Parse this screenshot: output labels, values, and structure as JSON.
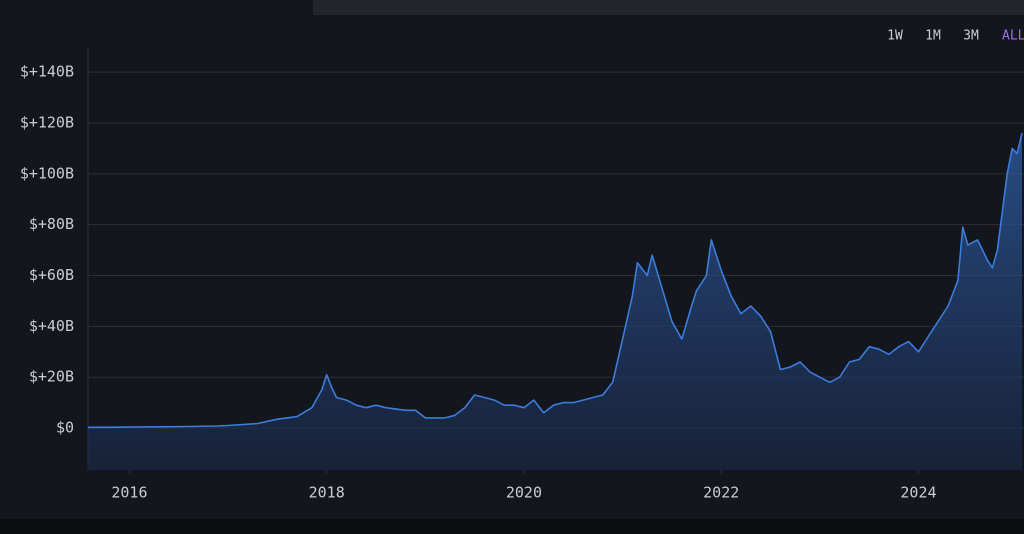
{
  "range_buttons": [
    "1W",
    "1M",
    "3M",
    "ALL"
  ],
  "chart_data": {
    "type": "area",
    "series": [
      {
        "color": "#3b7ddd",
        "x": [
          2015.58,
          2015.8,
          2016.0,
          2016.3,
          2016.6,
          2016.9,
          2017.0,
          2017.3,
          2017.5,
          2017.7,
          2017.85,
          2017.95,
          2018.0,
          2018.05,
          2018.1,
          2018.2,
          2018.3,
          2018.4,
          2018.5,
          2018.6,
          2018.8,
          2018.9,
          2019.0,
          2019.2,
          2019.3,
          2019.4,
          2019.5,
          2019.6,
          2019.7,
          2019.8,
          2019.9,
          2020.0,
          2020.1,
          2020.2,
          2020.3,
          2020.4,
          2020.5,
          2020.6,
          2020.7,
          2020.8,
          2020.9,
          2021.0,
          2021.1,
          2021.15,
          2021.25,
          2021.3,
          2021.4,
          2021.5,
          2021.6,
          2021.7,
          2021.75,
          2021.85,
          2021.9,
          2022.0,
          2022.1,
          2022.2,
          2022.3,
          2022.4,
          2022.5,
          2022.6,
          2022.7,
          2022.8,
          2022.9,
          2023.0,
          2023.1,
          2023.2,
          2023.3,
          2023.4,
          2023.5,
          2023.6,
          2023.7,
          2023.8,
          2023.9,
          2024.0,
          2024.1,
          2024.2,
          2024.3,
          2024.4,
          2024.45,
          2024.5,
          2024.6,
          2024.7,
          2024.75,
          2024.8,
          2024.85,
          2024.9,
          2024.95,
          2025.0,
          2025.05
        ],
        "values": [
          0.3,
          0.3,
          0.4,
          0.5,
          0.6,
          0.8,
          1.0,
          1.8,
          3.5,
          4.5,
          8,
          15,
          21,
          16,
          12,
          11,
          9,
          8,
          9,
          8,
          7,
          7,
          4,
          4,
          5,
          8,
          13,
          12,
          11,
          9,
          9,
          8,
          11,
          6,
          9,
          10,
          10,
          11,
          12,
          13,
          18,
          35,
          52,
          65,
          60,
          68,
          55,
          42,
          35,
          48,
          54,
          60,
          74,
          62,
          52,
          45,
          48,
          44,
          38,
          23,
          24,
          26,
          22,
          20,
          18,
          20,
          26,
          27,
          32,
          31,
          29,
          32,
          34,
          30,
          36,
          42,
          48,
          58,
          79,
          72,
          74,
          66,
          63,
          70,
          85,
          100,
          110,
          108,
          116
        ]
      }
    ],
    "xlim": [
      2015.58,
      2025.07
    ],
    "xticks": [
      2016,
      2018,
      2020,
      2022,
      2024
    ],
    "ylim": [
      -16.5,
      149.5
    ],
    "yticks": [
      {
        "value": 0,
        "label": "$0"
      },
      {
        "value": 20,
        "label": "$+20B"
      },
      {
        "value": 40,
        "label": "$+40B"
      },
      {
        "value": 60,
        "label": "$+60B"
      },
      {
        "value": 80,
        "label": "$+80B"
      },
      {
        "value": 100,
        "label": "$+100B"
      },
      {
        "value": 120,
        "label": "$+120B"
      },
      {
        "value": 140,
        "label": "$+140B"
      }
    ],
    "grid": true
  }
}
